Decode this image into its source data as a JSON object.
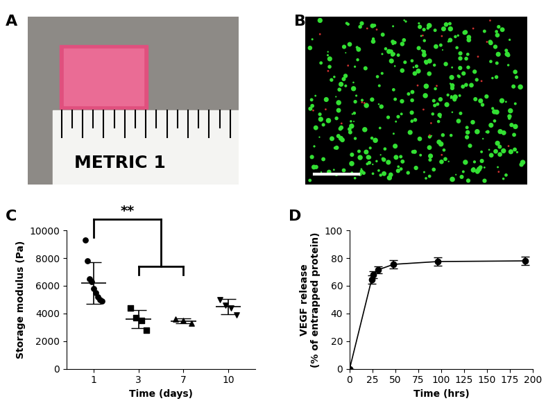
{
  "images": [
    {
      "label": "A",
      "text": "METRIC 1"
    },
    {
      "label": "B"
    }
  ],
  "chart_data": [
    {
      "type": "scatter",
      "title": "C",
      "xlabel": "Time (days)",
      "ylabel": "Storage modulus (Pa)",
      "categories": [
        "1",
        "3",
        "7",
        "10"
      ],
      "points": [
        [
          9300,
          7800,
          6500,
          6300,
          5800,
          5500,
          5200,
          5000,
          4900
        ],
        [
          4400,
          3700,
          3500,
          2800
        ],
        [
          3600,
          3500,
          3300
        ],
        [
          5000,
          4600,
          4400,
          3900
        ]
      ],
      "mean": [
        6200,
        3600,
        3450,
        4500
      ],
      "sd": [
        1500,
        650,
        170,
        550
      ],
      "ylim": [
        0,
        10000
      ],
      "yticks": [
        0,
        2000,
        4000,
        6000,
        8000,
        10000
      ],
      "annotations": [
        {
          "text": "**"
        }
      ],
      "color": "#000000"
    },
    {
      "type": "line",
      "title": "D",
      "xlabel": "Time (hrs)",
      "ylabel": "VEGF release\n(% of entrapped protein)",
      "x": [
        0,
        24,
        26,
        31,
        48,
        96,
        192
      ],
      "values": [
        0,
        64.5,
        68,
        71.5,
        75.5,
        77.5,
        78
      ],
      "error": [
        0,
        3,
        2.5,
        2.5,
        3,
        3,
        3
      ],
      "xlim": [
        0,
        200
      ],
      "xticks": [
        0,
        25,
        50,
        75,
        100,
        125,
        150,
        175,
        200
      ],
      "ylim": [
        0,
        100
      ],
      "yticks": [
        0,
        20,
        40,
        60,
        80,
        100
      ],
      "marker": "circle",
      "color": "#000000"
    }
  ]
}
